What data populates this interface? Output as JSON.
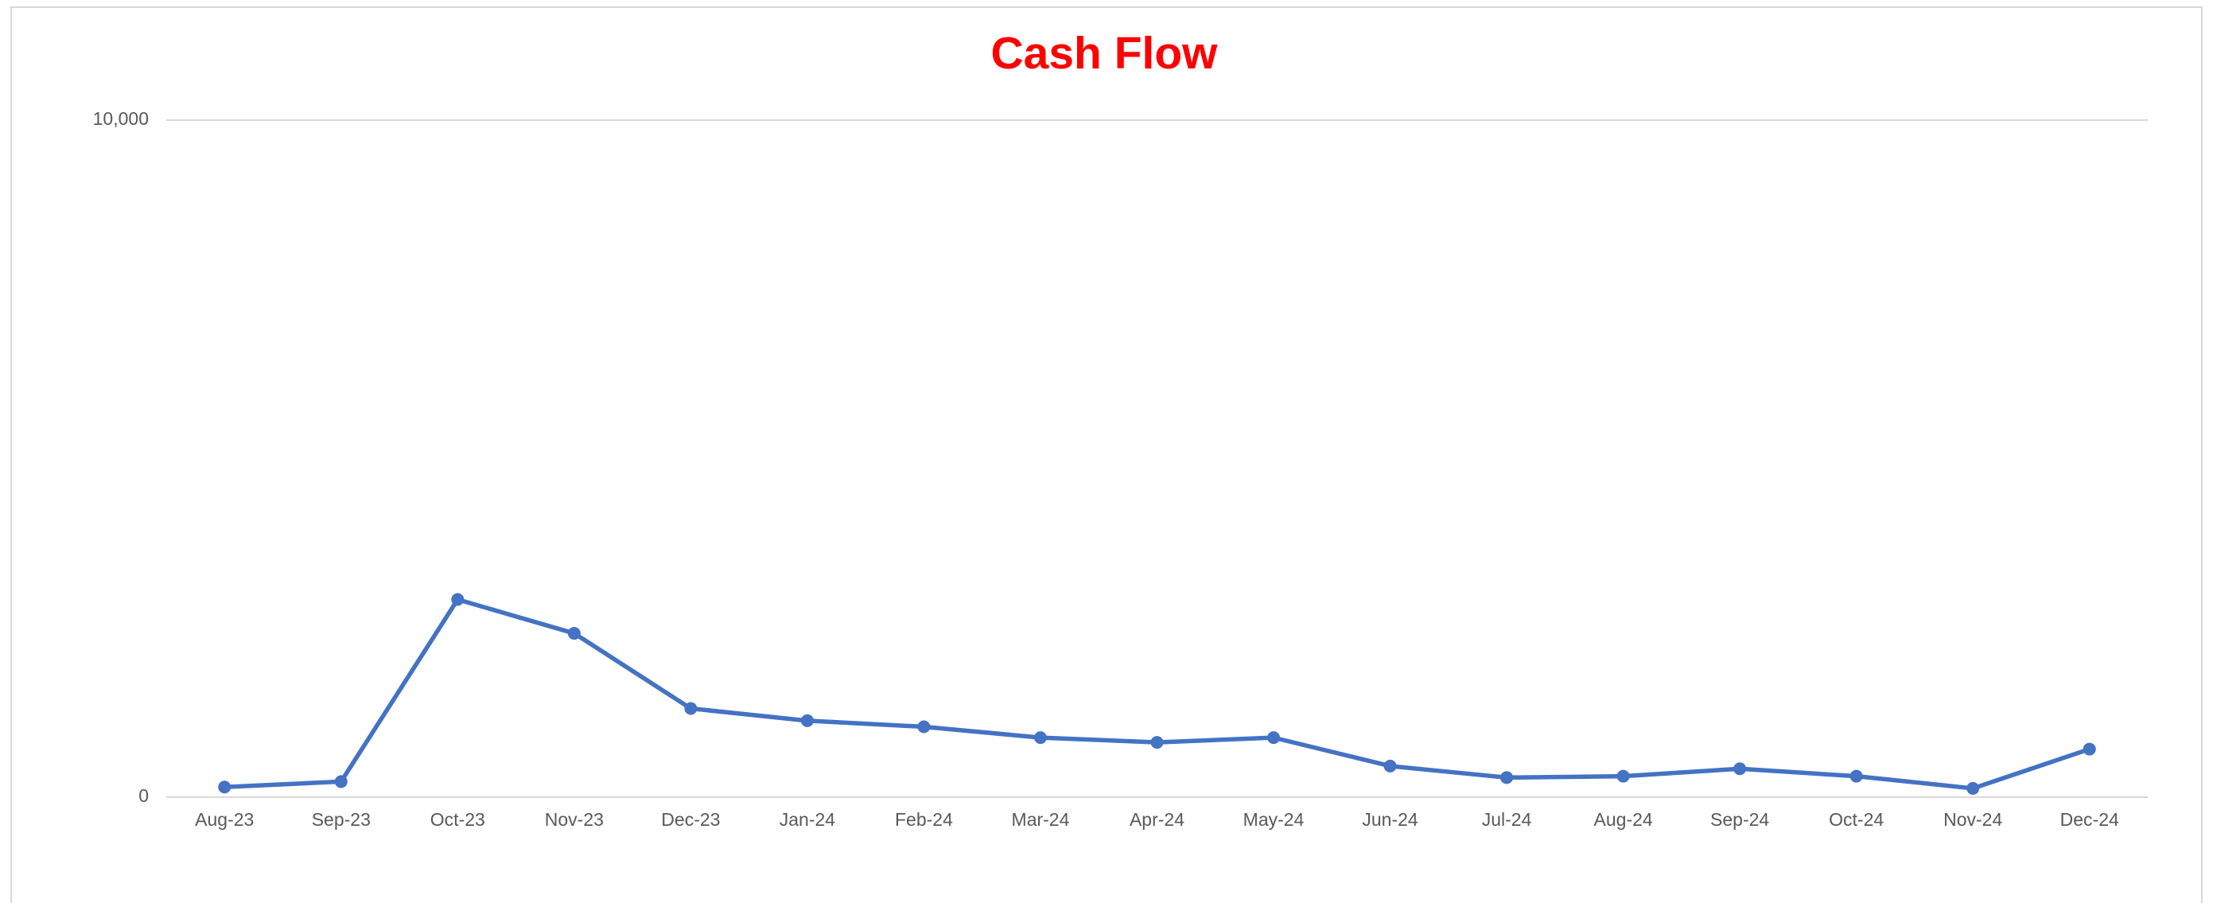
{
  "chart_data": {
    "type": "line",
    "title": "Cash Flow",
    "categories": [
      "Aug-23",
      "Sep-23",
      "Oct-23",
      "Nov-23",
      "Dec-23",
      "Jan-24",
      "Feb-24",
      "Mar-24",
      "Apr-24",
      "May-24",
      "Jun-24",
      "Jul-24",
      "Aug-24",
      "Sep-24",
      "Oct-24",
      "Nov-24",
      "Dec-24"
    ],
    "series": [
      {
        "name": "Cash Flow",
        "color": "#4472c4",
        "values": [
          150,
          230,
          2920,
          2420,
          1310,
          1130,
          1040,
          880,
          810,
          880,
          460,
          290,
          310,
          420,
          310,
          130,
          710
        ]
      }
    ],
    "ylim": [
      0,
      10000
    ],
    "yticks": [
      0,
      {
        "value": 10000,
        "label": "10,000"
      }
    ],
    "grid": true
  }
}
